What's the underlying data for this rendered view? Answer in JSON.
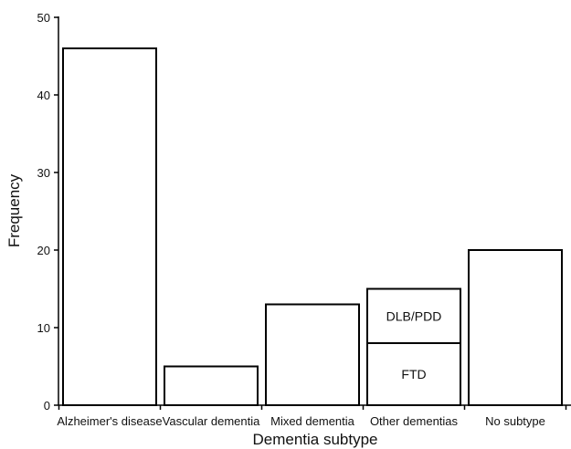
{
  "chart_data": {
    "type": "bar",
    "title": "",
    "xlabel": "Dementia subtype",
    "ylabel": "Frequency",
    "ylim": [
      0,
      50
    ],
    "yticks": [
      0,
      10,
      20,
      30,
      40,
      50
    ],
    "grid": false,
    "categories": [
      "Alzheimer's disease",
      "Vascular dementia",
      "Mixed dementia",
      "Other dementias",
      "No subtype"
    ],
    "values": [
      46,
      5,
      13,
      15,
      20
    ],
    "stacked_segments": [
      {
        "category": "Other dementias",
        "label": "FTD",
        "value": 8
      },
      {
        "category": "Other dementias",
        "label": "DLB/PDD",
        "value": 7
      }
    ],
    "bar_fill": "#ffffff",
    "bar_stroke": "#000000"
  }
}
